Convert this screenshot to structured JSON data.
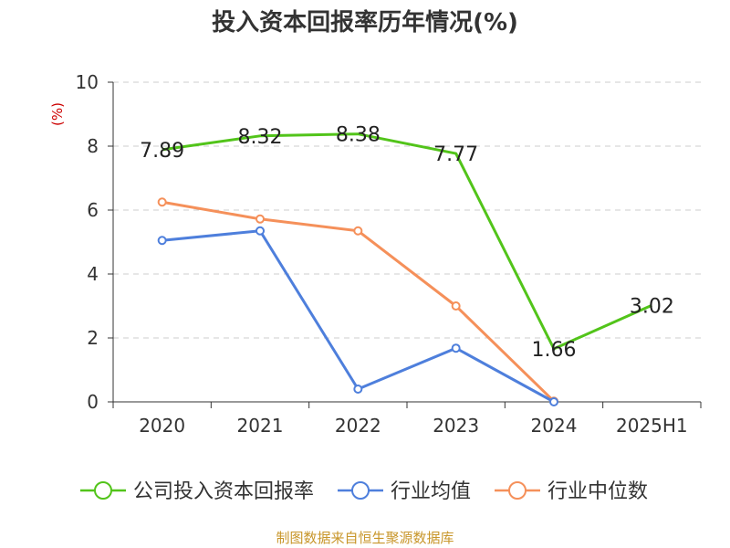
{
  "chart_data": {
    "type": "line",
    "title": "投入资本回报率历年情况(%)",
    "ylabel": "(%)",
    "xlabel": "",
    "categories": [
      "2020",
      "2021",
      "2022",
      "2023",
      "2024",
      "2025H1"
    ],
    "ylim": [
      0,
      10
    ],
    "yticks": [
      0,
      2,
      4,
      6,
      8,
      10
    ],
    "grid": true,
    "legend_position": "bottom",
    "series": [
      {
        "name": "公司投入资本回报率",
        "color": "#52c41a",
        "values": [
          7.89,
          8.32,
          8.38,
          7.77,
          1.66,
          3.02
        ],
        "labels": [
          "7.89",
          "8.32",
          "8.38",
          "7.77",
          "1.66",
          "3.02"
        ],
        "show_labels": true
      },
      {
        "name": "行业均值",
        "color": "#4e7fdc",
        "values": [
          5.05,
          5.35,
          0.4,
          1.68,
          0.0,
          null
        ],
        "show_labels": false
      },
      {
        "name": "行业中位数",
        "color": "#f5905a",
        "values": [
          6.25,
          5.72,
          5.35,
          3.0,
          0.02,
          null
        ],
        "show_labels": false
      }
    ],
    "source": "制图数据来自恒生聚源数据库",
    "colors": {
      "ylabel": "#cc0000",
      "source": "#c8962a",
      "grid": "#cccccc",
      "axis": "#333333"
    }
  }
}
